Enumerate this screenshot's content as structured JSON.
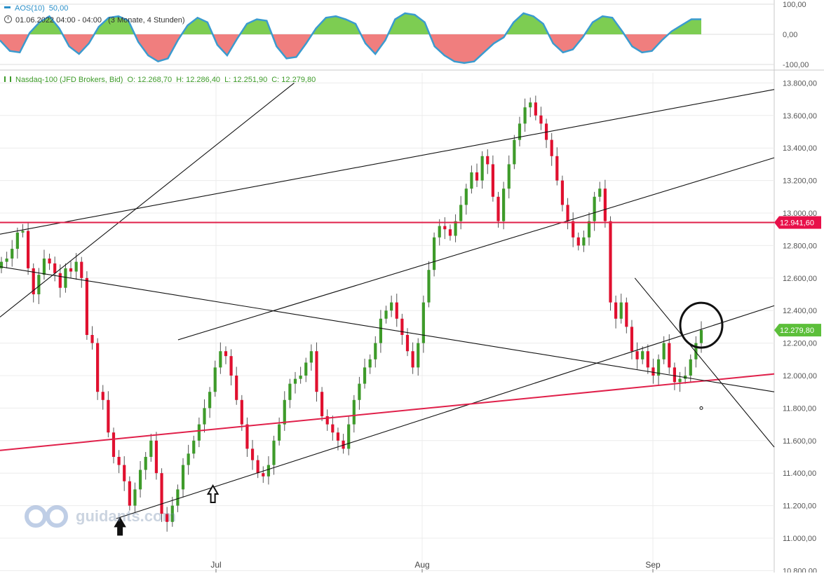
{
  "oscillator": {
    "name": "AOS(10)",
    "value": "50,00",
    "date_line": "01.06.2022 04:00 - 04:00",
    "period_line": "(3 Monate, 4 Stunden)",
    "yticks": [
      "100,00",
      "0,00",
      "-100,00"
    ],
    "pos_color": "#7dcd52",
    "neg_color": "#f07e7e",
    "line_color": "#3a9bcf"
  },
  "main": {
    "instrument": "Nasdaq-100 (JFD Brokers, Bid)",
    "ohlc": {
      "open": "O: 12.268,70",
      "high": "H: 12.286,40",
      "low": "L: 12.251,90",
      "close": "C: 12.279,80"
    },
    "yticks": [
      "10.800,00",
      "11.000,00",
      "11.200,00",
      "11.400,00",
      "11.600,00",
      "11.800,00",
      "12.000,00",
      "12.200,00",
      "12.400,00",
      "12.600,00",
      "12.800,00",
      "13.000,00",
      "13.200,00",
      "13.400,00",
      "13.600,00",
      "13.800,00"
    ],
    "xticks": [
      "Jul",
      "Aug",
      "Sep"
    ],
    "hline_label": "12.941,60",
    "last_price_label": "12.279,80",
    "up_color": "#3e9b2a",
    "down_color": "#e0102f",
    "hline_color": "#e0204a"
  },
  "watermark": {
    "text": "guidants.com"
  },
  "chart_data": [
    {
      "type": "area",
      "title": "AOS(10)",
      "ylim": [
        -100,
        100
      ],
      "y": [
        -20,
        -55,
        -60,
        5,
        40,
        60,
        20,
        -40,
        -65,
        -30,
        25,
        55,
        60,
        45,
        -25,
        -70,
        -90,
        -80,
        -20,
        30,
        55,
        40,
        -35,
        -70,
        -15,
        35,
        50,
        45,
        -40,
        -80,
        -75,
        -30,
        20,
        55,
        60,
        50,
        35,
        -30,
        -65,
        -20,
        50,
        70,
        65,
        40,
        -40,
        -70,
        -90,
        -95,
        -90,
        -60,
        -30,
        -10,
        40,
        70,
        60,
        35,
        -30,
        -60,
        -50,
        -10,
        40,
        60,
        55,
        10,
        -40,
        -60,
        -55,
        -20,
        10,
        30,
        50,
        50
      ]
    },
    {
      "type": "line",
      "title": "Nasdaq-100 (JFD Brokers, Bid)",
      "xlabel": "",
      "ylabel": "",
      "ylim": [
        10800,
        13800
      ],
      "x_ticks": [
        "Jul",
        "Aug",
        "Sep"
      ],
      "series": [
        {
          "values": [
            12700,
            12720,
            12780,
            12880,
            12890,
            12660,
            12500,
            12620,
            12720,
            12690,
            12630,
            12540,
            12660,
            12640,
            12700,
            12600,
            12250,
            12200,
            11900,
            11850,
            11650,
            11500,
            11450,
            11350,
            11200,
            11300,
            11420,
            11500,
            11600,
            11400,
            11150,
            11100,
            11200,
            11300,
            11450,
            11520,
            11600,
            11700,
            11800,
            11900,
            12050,
            12150,
            12120,
            12000,
            11850,
            11700,
            11550,
            11480,
            11400,
            11380,
            11450,
            11600,
            11700,
            11850,
            11950,
            11980,
            12000,
            12080,
            12150,
            11900,
            11750,
            11700,
            11650,
            11600,
            11550,
            11700,
            11850,
            11950,
            12050,
            12100,
            12200,
            12350,
            12400,
            12450,
            12350,
            12250,
            12150,
            12050,
            12200,
            12450,
            12650,
            12850,
            12920,
            12900,
            12860,
            12950,
            13050,
            13150,
            13250,
            13200,
            13350,
            13300,
            13100,
            12950,
            13150,
            13300,
            13450,
            13550,
            13650,
            13680,
            13600,
            13550,
            13450,
            13350,
            13200,
            13050,
            12950,
            12850,
            12800,
            12850,
            12950,
            13100,
            13150,
            12950,
            12450,
            12350,
            12450,
            12300,
            12150,
            12100,
            12150,
            12050,
            12000,
            12100,
            12200,
            12050,
            11960,
            11980,
            12000,
            12100,
            12200,
            12280
          ]
        }
      ],
      "annotations": {
        "horizontal_level": 12941.6,
        "last_price": 12279.8,
        "trendlines": [
          {
            "name": "upper-channel",
            "from": [
              0,
              12870
            ],
            "to": [
              1,
              13760
            ]
          },
          {
            "name": "mid-channel",
            "from": [
              0.23,
              12220
            ],
            "to": [
              1,
              13340
            ]
          },
          {
            "name": "lower-rising",
            "from": [
              0.15,
              11120
            ],
            "to": [
              1,
              12430
            ]
          },
          {
            "name": "support-red",
            "from": [
              0,
              11540
            ],
            "to": [
              1,
              12010
            ]
          },
          {
            "name": "falling",
            "from": [
              0,
              12670
            ],
            "to": [
              1,
              11900
            ]
          },
          {
            "name": "steep-rising",
            "from": [
              0,
              12360
            ],
            "to": [
              0.38,
              13800
            ]
          },
          {
            "name": "short-falling",
            "from": [
              0.82,
              12600
            ],
            "to": [
              1,
              11560
            ]
          }
        ],
        "arrows": [
          {
            "x_frac": 0.155,
            "price": 11020
          },
          {
            "x_frac": 0.275,
            "price": 11220
          }
        ],
        "circle_price": 12310
      }
    }
  ]
}
